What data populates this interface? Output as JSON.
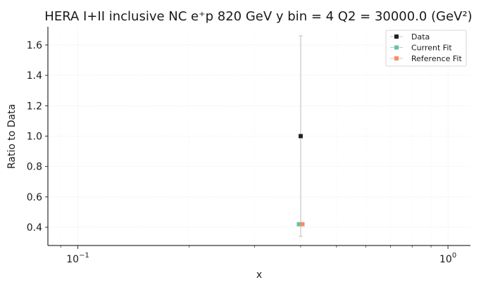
{
  "chart_data": {
    "type": "scatter",
    "title": "HERA I+II inclusive NC e⁺p 820 GeV y bin = 4 Q2 = 30000.0 (GeV²)",
    "xlabel": "x",
    "ylabel": "Ratio to Data",
    "xscale": "log",
    "xlim": [
      0.083,
      1.15
    ],
    "ylim": [
      0.28,
      1.72
    ],
    "x_ticks": [
      0.1,
      1.0
    ],
    "x_tick_labels": [
      {
        "base": "10",
        "exp": "−1"
      },
      {
        "base": "10",
        "exp": "0"
      }
    ],
    "y_ticks": [
      "0.4",
      "0.6",
      "0.8",
      "1.0",
      "1.2",
      "1.4",
      "1.6"
    ],
    "grid": true,
    "legend_position": "top-right",
    "series": [
      {
        "name": "Data",
        "color": "#222222",
        "points": [
          {
            "x": 0.4,
            "y": 1.0,
            "yerr": 0.66
          }
        ]
      },
      {
        "name": "Current Fit",
        "color": "#66c2a5",
        "points": [
          {
            "x": 0.4,
            "y": 0.42
          }
        ]
      },
      {
        "name": "Reference Fit",
        "color": "#fc8d62",
        "points": [
          {
            "x": 0.4,
            "y": 0.42
          }
        ]
      }
    ]
  }
}
